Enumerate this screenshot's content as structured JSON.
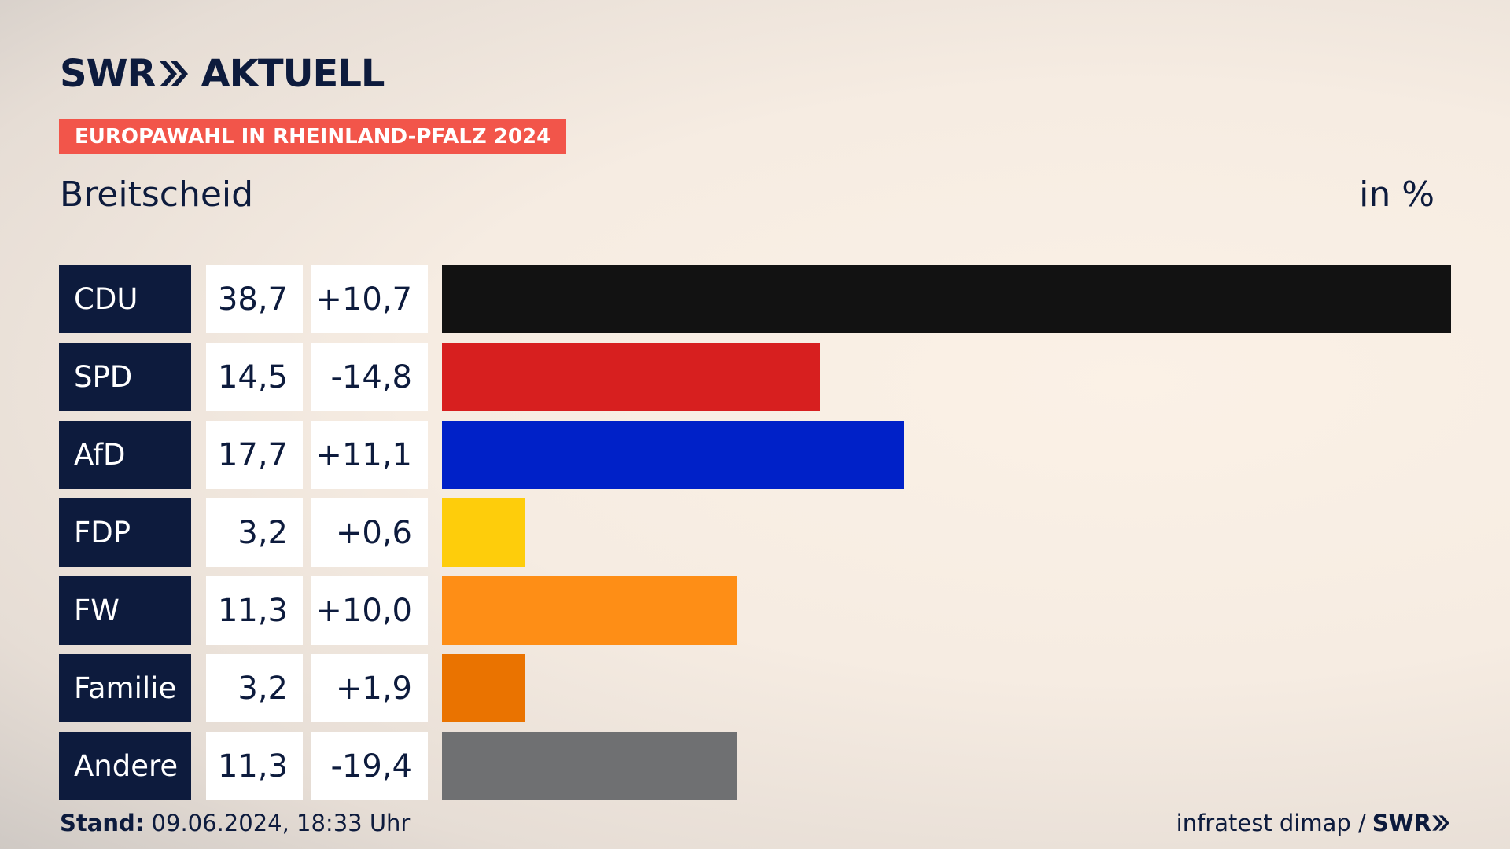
{
  "brand": {
    "logo_left": "SWR",
    "logo_right": "AKTUELL"
  },
  "badge": "EUROPAWAHL IN RHEINLAND-PFALZ 2024",
  "subtitle": "Breitscheid",
  "unit": "in %",
  "footer": {
    "stand_label": "Stand:",
    "stand_value": "09.06.2024, 18:33 Uhr",
    "source": "infratest dimap /",
    "source_brand": "SWR"
  },
  "chart_data": {
    "type": "bar",
    "orientation": "horizontal",
    "categories": [
      "CDU",
      "SPD",
      "AfD",
      "FDP",
      "FW",
      "Familie",
      "Andere"
    ],
    "values": [
      38.7,
      14.5,
      17.7,
      3.2,
      11.3,
      3.2,
      11.3
    ],
    "value_labels": [
      "38,7",
      "14,5",
      "17,7",
      "3,2",
      "11,3",
      "3,2",
      "11,3"
    ],
    "diff_labels": [
      "+10,7",
      "-14,8",
      "+11,1",
      "+0,6",
      "+10,0",
      "+1,9",
      "-19,4"
    ],
    "colors": [
      "#121212",
      "#d71f1f",
      "#0021c8",
      "#fecd0b",
      "#fe8e16",
      "#ea7300",
      "#6f7072"
    ],
    "xlim": [
      0,
      38.7
    ]
  }
}
